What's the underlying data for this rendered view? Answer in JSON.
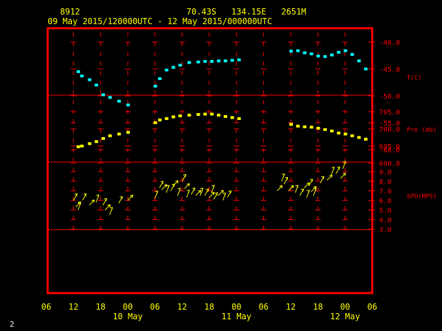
{
  "header": {
    "station": "8912",
    "location": "70.43S   134.15E   2651M",
    "period": "09 May 2015/120000UTC - 12 May 2015/000000UTC"
  },
  "footer": {
    "page_number": "2"
  },
  "chart_data": {
    "type": "scatter",
    "colors": {
      "frame": "#ff0000",
      "text_yellow": "#ffff00",
      "temperature": "#00ffff",
      "pressure": "#ffff00",
      "wind": "#ffff00",
      "axis_labels": "#ff0000"
    },
    "x_axis": {
      "unit": "hours since 09 May 06 UTC",
      "xlim": [
        0,
        72
      ],
      "ticks": [
        {
          "x": 0,
          "label": "06"
        },
        {
          "x": 6,
          "label": "12"
        },
        {
          "x": 12,
          "label": "18"
        },
        {
          "x": 18,
          "label": "00"
        },
        {
          "x": 24,
          "label": "06"
        },
        {
          "x": 30,
          "label": "12"
        },
        {
          "x": 36,
          "label": "18"
        },
        {
          "x": 42,
          "label": "00"
        },
        {
          "x": 48,
          "label": "06"
        },
        {
          "x": 54,
          "label": "12"
        },
        {
          "x": 60,
          "label": "18"
        },
        {
          "x": 66,
          "label": "00"
        },
        {
          "x": 72,
          "label": "06"
        }
      ],
      "day_labels": [
        {
          "x": 18,
          "label": "10 May"
        },
        {
          "x": 42,
          "label": "11 May"
        },
        {
          "x": 66,
          "label": "12 May"
        }
      ]
    },
    "panels": [
      {
        "name": "temperature",
        "ylabel": "T(C)",
        "ylim": [
          -60,
          -37.5
        ],
        "ticks": [
          -40,
          -45,
          -50,
          -55,
          -60
        ],
        "tick_labels": [
          "-40.0",
          "-45.0",
          "-50.0",
          "-55.0",
          "-60.0"
        ],
        "label_at": -46.5,
        "points": [
          [
            7,
            -45.5
          ],
          [
            7.8,
            -46.3
          ],
          [
            9.5,
            -47
          ],
          [
            11,
            -48
          ],
          [
            12.5,
            -49.8
          ],
          [
            14,
            -50.3
          ],
          [
            16,
            -51
          ],
          [
            18,
            -51.7
          ],
          [
            24,
            -48.2
          ],
          [
            25,
            -46.8
          ],
          [
            26.5,
            -45.2
          ],
          [
            28,
            -44.7
          ],
          [
            29.5,
            -44.3
          ],
          [
            31.5,
            -43.8
          ],
          [
            33.5,
            -43.7
          ],
          [
            35,
            -43.6
          ],
          [
            36.5,
            -43.6
          ],
          [
            38,
            -43.5
          ],
          [
            39.5,
            -43.5
          ],
          [
            41,
            -43.4
          ],
          [
            42.5,
            -43.3
          ],
          [
            54,
            -41.7
          ],
          [
            55.5,
            -41.6
          ],
          [
            57,
            -42
          ],
          [
            58.5,
            -42.2
          ],
          [
            60,
            -42.6
          ],
          [
            61.5,
            -42.7
          ],
          [
            63,
            -42.4
          ],
          [
            64.5,
            -41.9
          ],
          [
            66,
            -41.6
          ],
          [
            67.5,
            -42.3
          ],
          [
            69,
            -43.5
          ],
          [
            70.5,
            -45
          ]
        ]
      },
      {
        "name": "pressure",
        "ylabel": "Pre (mb)",
        "ylim": [
          690,
          704
        ],
        "ticks": [
          705,
          700,
          695,
          690
        ],
        "tick_labels": [
          "705.0",
          "700.0",
          "695.0",
          "690.0"
        ],
        "label_at": 700,
        "points": [
          [
            7,
            694.8
          ],
          [
            7.8,
            695
          ],
          [
            9.5,
            695.7
          ],
          [
            11,
            696.3
          ],
          [
            12.5,
            697.2
          ],
          [
            14,
            698
          ],
          [
            16,
            698.5
          ],
          [
            18,
            699
          ],
          [
            24,
            701.8
          ],
          [
            25,
            702.6
          ],
          [
            26.5,
            703
          ],
          [
            28,
            703.5
          ],
          [
            29.5,
            703.8
          ],
          [
            31.5,
            704
          ],
          [
            33.5,
            704.2
          ],
          [
            35,
            704.3
          ],
          [
            36.5,
            704.3
          ],
          [
            38,
            704
          ],
          [
            39.5,
            703.6
          ],
          [
            41,
            703.3
          ],
          [
            42.5,
            703
          ],
          [
            54,
            701.3
          ],
          [
            55.5,
            700.8
          ],
          [
            57,
            700.6
          ],
          [
            58.5,
            700.5
          ],
          [
            60,
            700.2
          ],
          [
            61.5,
            699.8
          ],
          [
            63,
            699.4
          ],
          [
            64.5,
            698.8
          ],
          [
            66,
            698.5
          ],
          [
            67.5,
            698
          ],
          [
            69,
            697.5
          ],
          [
            70.5,
            697
          ]
        ]
      },
      {
        "name": "wind",
        "ylabel": "SPD(MPS)",
        "ylim": [
          3,
          10
        ],
        "ticks": [
          9,
          8,
          7,
          6,
          5,
          4,
          3
        ],
        "tick_labels": [
          "9.0",
          "8.0",
          "7.0",
          "6.0",
          "5.0",
          "4.0",
          "3.0"
        ],
        "label_at": 6.5,
        "points": [
          [
            6,
            6
          ],
          [
            6.5,
            5.3
          ],
          [
            7,
            5
          ],
          [
            8,
            6
          ],
          [
            9.5,
            5.5
          ],
          [
            11,
            5.8
          ],
          [
            12.5,
            5.5
          ],
          [
            13,
            5
          ],
          [
            14,
            4.5
          ],
          [
            16,
            5.7
          ],
          [
            18,
            6
          ],
          [
            24,
            6.2
          ],
          [
            25,
            7.3
          ],
          [
            25.5,
            7.1
          ],
          [
            26.5,
            6.8
          ],
          [
            27.5,
            7
          ],
          [
            28,
            7.5
          ],
          [
            29,
            6.5
          ],
          [
            30,
            8
          ],
          [
            30.5,
            7.2
          ],
          [
            31,
            6.3
          ],
          [
            32,
            6.6
          ],
          [
            33,
            6.5
          ],
          [
            34,
            6.5
          ],
          [
            35,
            6.5
          ],
          [
            36,
            6.3
          ],
          [
            36.5,
            6.8
          ],
          [
            37,
            6.1
          ],
          [
            38,
            6.5
          ],
          [
            39,
            6
          ],
          [
            40,
            6.3
          ],
          [
            51,
            7
          ],
          [
            52,
            8
          ],
          [
            52.5,
            7.7
          ],
          [
            53.5,
            7
          ],
          [
            55,
            6.8
          ],
          [
            56,
            6.5
          ],
          [
            57,
            7.3
          ],
          [
            57.5,
            6.3
          ],
          [
            58,
            7.5
          ],
          [
            58.5,
            6.9
          ],
          [
            59,
            6.5
          ],
          [
            60.5,
            7.8
          ],
          [
            62,
            8.1
          ],
          [
            63,
            8.7
          ],
          [
            64,
            8.8
          ],
          [
            65,
            8.3
          ],
          [
            65.5,
            9.3
          ]
        ]
      }
    ]
  }
}
